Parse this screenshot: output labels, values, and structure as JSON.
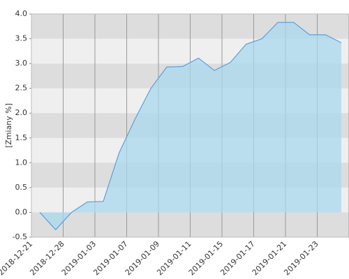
{
  "chart_data": {
    "type": "area",
    "y_label": "[Zmiany %]",
    "xticks": [
      "2018-12-21",
      "2018-12-28",
      "2019-01-03",
      "2019-01-07",
      "2019-01-09",
      "2019-01-11",
      "2019-01-15",
      "2019-01-17",
      "2019-01-21",
      "2019-01-23"
    ],
    "values": [
      0,
      -0.35,
      0.0,
      0.21,
      0.22,
      1.2,
      1.88,
      2.5,
      2.93,
      2.94,
      3.11,
      2.86,
      3.02,
      3.39,
      3.5,
      3.83,
      3.83,
      3.58,
      3.58,
      3.42
    ],
    "color": "#5a9fd8",
    "fill": "#a9d8ef",
    "ylim": [
      -0.5,
      4.0
    ],
    "yticks": [
      -0.5,
      {
        "value": 0,
        "label": "0.0"
      },
      0.5,
      {
        "value": 1,
        "label": "1.0"
      },
      1.5,
      {
        "value": 2,
        "label": "2.0"
      },
      2.5,
      {
        "value": 3,
        "label": "3.0"
      },
      3.5,
      {
        "value": 4,
        "label": "4.0"
      }
    ],
    "grid": true
  }
}
